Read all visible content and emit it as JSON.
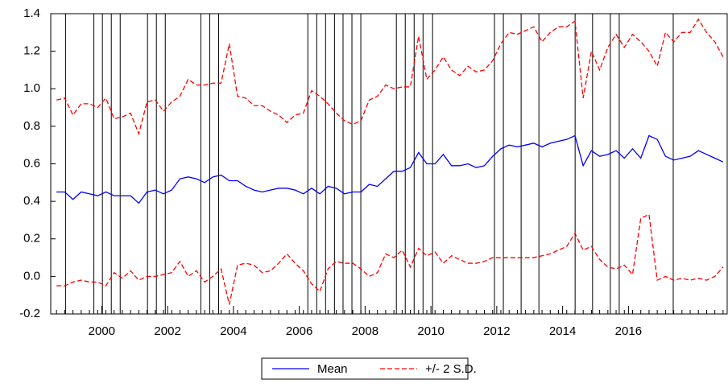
{
  "chart_data": {
    "type": "line",
    "x": [
      1998.625,
      1998.875,
      1999.125,
      1999.375,
      1999.625,
      1999.875,
      2000.125,
      2000.375,
      2000.625,
      2000.875,
      2001.125,
      2001.375,
      2001.625,
      2001.875,
      2002.125,
      2002.375,
      2002.625,
      2002.875,
      2003.125,
      2003.375,
      2003.625,
      2003.875,
      2004.125,
      2004.375,
      2004.625,
      2004.875,
      2005.125,
      2005.375,
      2005.625,
      2005.875,
      2006.125,
      2006.375,
      2006.625,
      2006.875,
      2007.125,
      2007.375,
      2007.625,
      2007.875,
      2008.125,
      2008.375,
      2008.625,
      2008.875,
      2009.125,
      2009.375,
      2009.625,
      2009.875,
      2010.125,
      2010.375,
      2010.625,
      2010.875,
      2011.125,
      2011.375,
      2011.625,
      2011.875,
      2012.125,
      2012.375,
      2012.625,
      2012.875,
      2013.125,
      2013.375,
      2013.625,
      2013.875,
      2014.125,
      2014.375,
      2014.625,
      2014.875,
      2015.125,
      2015.375,
      2015.625,
      2015.875,
      2016.125,
      2016.375,
      2016.625,
      2016.875,
      2017.125,
      2017.375,
      2017.625,
      2017.875,
      2018.125,
      2018.375,
      2018.625,
      2018.875
    ],
    "series": [
      {
        "name": "Mean",
        "color": "#0000ff",
        "dashed": false,
        "values": [
          0.45,
          0.45,
          0.41,
          0.45,
          0.44,
          0.43,
          0.45,
          0.43,
          0.43,
          0.43,
          0.39,
          0.45,
          0.46,
          0.44,
          0.46,
          0.52,
          0.53,
          0.52,
          0.5,
          0.53,
          0.54,
          0.51,
          0.51,
          0.48,
          0.46,
          0.45,
          0.46,
          0.47,
          0.47,
          0.46,
          0.44,
          0.47,
          0.44,
          0.48,
          0.47,
          0.44,
          0.45,
          0.45,
          0.49,
          0.48,
          0.52,
          0.56,
          0.56,
          0.58,
          0.66,
          0.6,
          0.6,
          0.65,
          0.59,
          0.59,
          0.6,
          0.58,
          0.59,
          0.64,
          0.68,
          0.7,
          0.69,
          0.7,
          0.71,
          0.69,
          0.71,
          0.72,
          0.73,
          0.75,
          0.59,
          0.67,
          0.64,
          0.65,
          0.67,
          0.63,
          0.68,
          0.63,
          0.75,
          0.73,
          0.64,
          0.62,
          0.63,
          0.64,
          0.67,
          0.65,
          0.63,
          0.61
        ]
      },
      {
        "name": "+/- 2 S.D.",
        "color": "#ff0000",
        "dashed": true,
        "values": [
          0.94,
          0.95,
          0.86,
          0.92,
          0.92,
          0.9,
          0.95,
          0.84,
          0.85,
          0.87,
          0.76,
          0.93,
          0.94,
          0.88,
          0.93,
          0.96,
          1.05,
          1.02,
          1.02,
          1.03,
          1.03,
          1.24,
          0.96,
          0.95,
          0.91,
          0.91,
          0.88,
          0.86,
          0.82,
          0.86,
          0.87,
          0.99,
          0.96,
          0.92,
          0.87,
          0.83,
          0.81,
          0.83,
          0.94,
          0.96,
          1.02,
          1.0,
          1.01,
          1.01,
          1.28,
          1.05,
          1.1,
          1.17,
          1.1,
          1.07,
          1.12,
          1.09,
          1.1,
          1.15,
          1.24,
          1.3,
          1.29,
          1.31,
          1.33,
          1.25,
          1.3,
          1.33,
          1.33,
          1.36,
          0.95,
          1.2,
          1.1,
          1.22,
          1.29,
          1.22,
          1.29,
          1.25,
          1.2,
          1.12,
          1.3,
          1.25,
          1.3,
          1.3,
          1.37,
          1.3,
          1.25,
          1.17
        ],
        "lower": [
          -0.05,
          -0.05,
          -0.03,
          -0.02,
          -0.03,
          -0.03,
          -0.05,
          0.02,
          -0.01,
          0.03,
          -0.02,
          0.0,
          0.0,
          0.01,
          0.02,
          0.08,
          0.0,
          0.03,
          -0.03,
          0.0,
          0.04,
          -0.15,
          0.06,
          0.07,
          0.06,
          0.02,
          0.03,
          0.07,
          0.12,
          0.07,
          0.03,
          -0.04,
          -0.08,
          0.04,
          0.08,
          0.07,
          0.07,
          0.04,
          0.0,
          0.02,
          0.12,
          0.1,
          0.14,
          0.05,
          0.15,
          0.11,
          0.13,
          0.07,
          0.11,
          0.09,
          0.07,
          0.07,
          0.08,
          0.1,
          0.1,
          0.1,
          0.1,
          0.1,
          0.1,
          0.11,
          0.12,
          0.14,
          0.16,
          0.23,
          0.14,
          0.16,
          0.09,
          0.05,
          0.04,
          0.06,
          0.01,
          0.31,
          0.33,
          -0.02,
          0.0,
          -0.02,
          -0.01,
          -0.02,
          -0.01,
          -0.02,
          0.0,
          0.05
        ]
      }
    ],
    "breaks": [
      1998.9,
      1999.76,
      2000.02,
      2000.29,
      2000.56,
      2001.39,
      2001.66,
      2001.93,
      2003.01,
      2003.28,
      2003.55,
      2006.26,
      2006.53,
      2006.8,
      2007.07,
      2007.33,
      2007.6,
      2007.87,
      2008.95,
      2009.22,
      2009.49,
      2009.76,
      2010.05,
      2011.93,
      2012.2,
      2012.74,
      2013.28,
      2014.38,
      2014.91,
      2015.45,
      2015.72,
      2017.36
    ],
    "xlim": [
      1998.45,
      2019.0
    ],
    "xticks": [
      2000,
      2002,
      2004,
      2006,
      2008,
      2010,
      2012,
      2014,
      2016
    ],
    "ylim": [
      -0.2,
      1.4
    ],
    "yticks": [
      -0.2,
      {
        "value": 0,
        "label": "0.0"
      },
      0.2,
      0.4,
      0.6,
      0.8,
      {
        "value": 1,
        "label": "1.0"
      },
      1.2,
      1.4
    ]
  }
}
